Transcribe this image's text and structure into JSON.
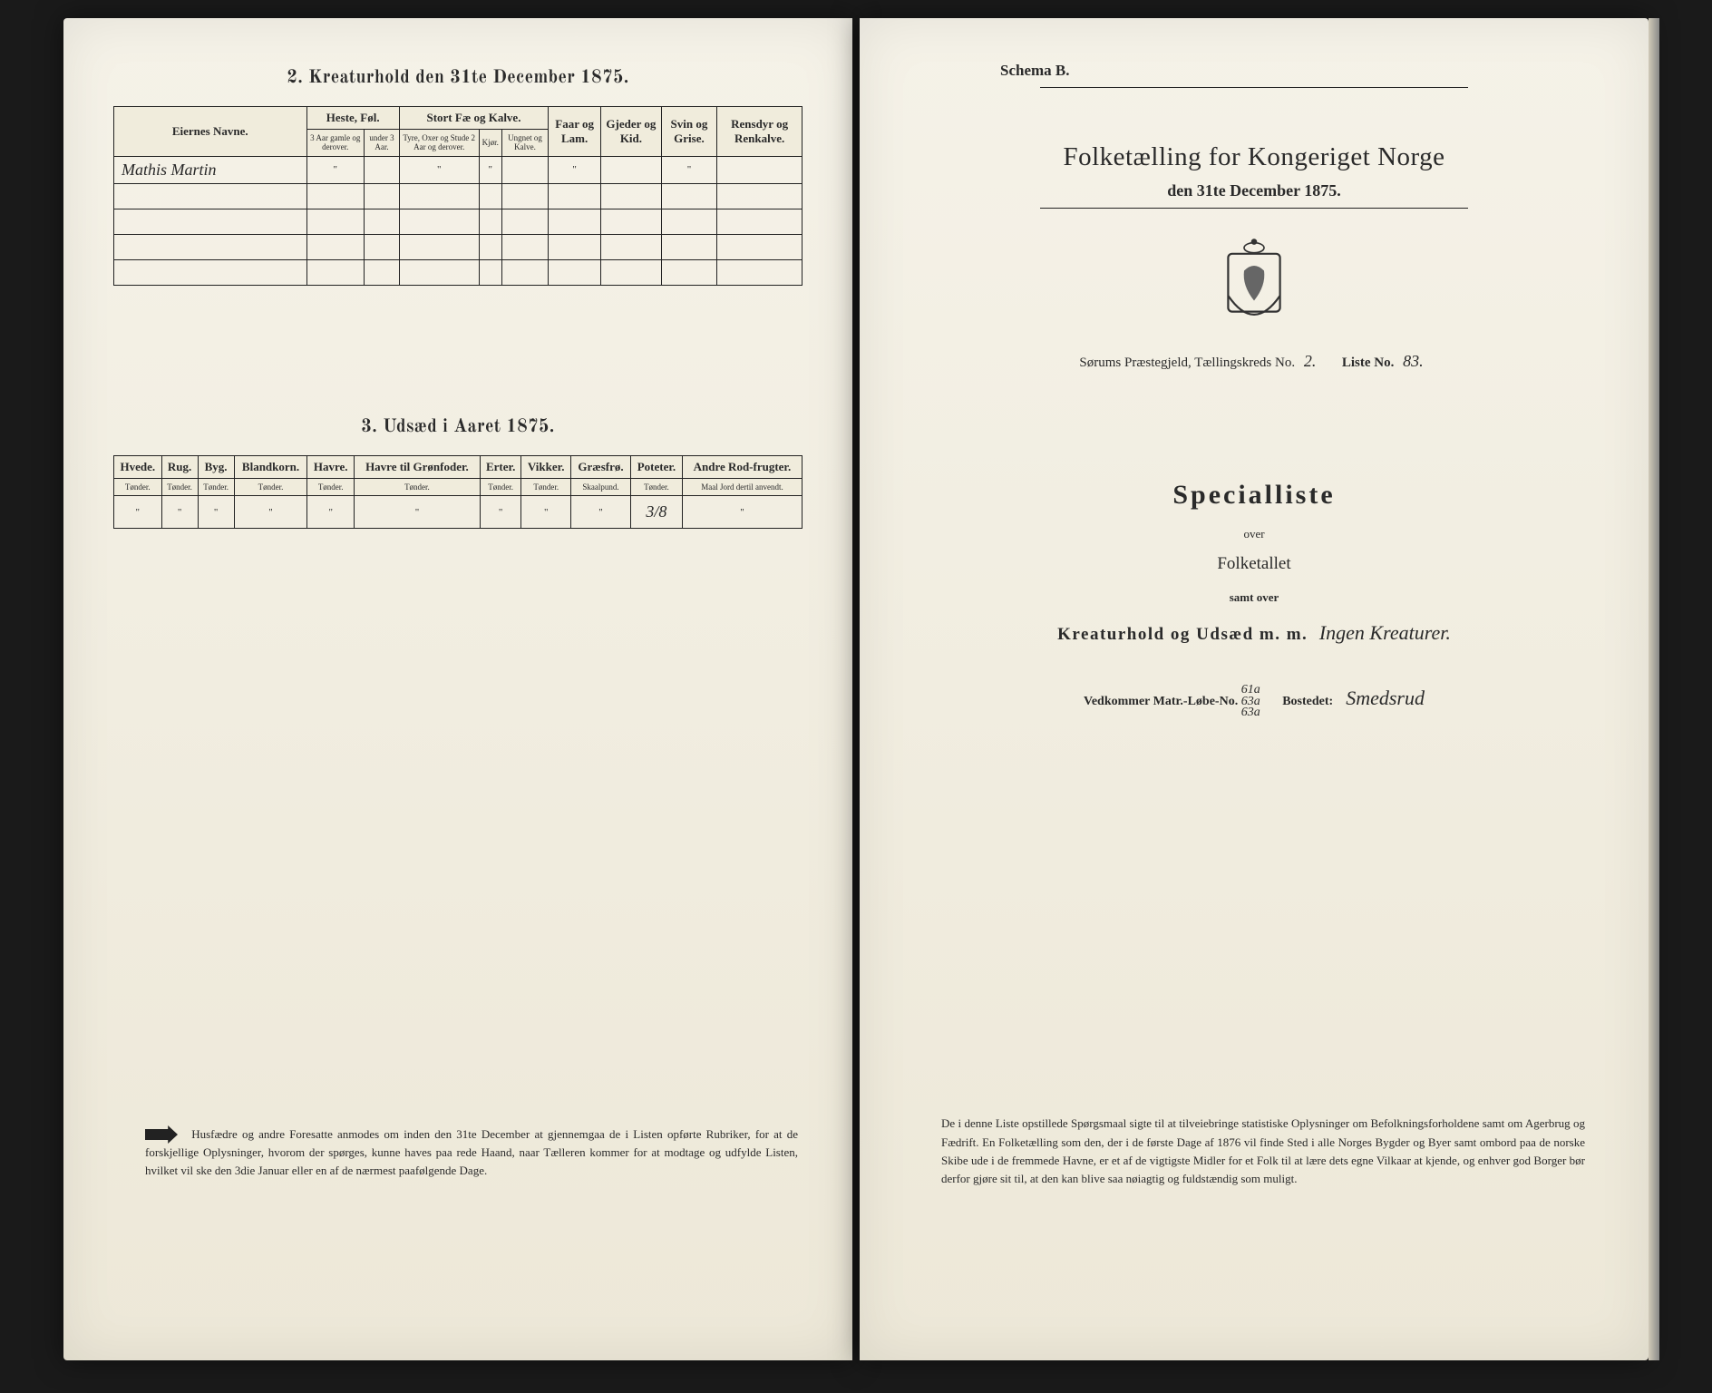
{
  "left": {
    "section2_title": "2.  Kreaturhold den 31te December 1875.",
    "table2": {
      "groups": [
        {
          "label": "Eiernes Navne.",
          "span": 1,
          "rowspan": 2
        },
        {
          "label": "Heste, Føl.",
          "span": 2
        },
        {
          "label": "Stort Fæ og Kalve.",
          "span": 3
        },
        {
          "label": "Faar og Lam.",
          "span": 1,
          "rowspan": 2
        },
        {
          "label": "Gjeder og Kid.",
          "span": 1,
          "rowspan": 2
        },
        {
          "label": "Svin og Grise.",
          "span": 1,
          "rowspan": 2
        },
        {
          "label": "Rensdyr og Renkalve.",
          "span": 1,
          "rowspan": 2
        }
      ],
      "subheaders": [
        "3 Aar gamle og derover.",
        "under 3 Aar.",
        "Tyre, Oxer og Stude 2 Aar og derover.",
        "Kjør.",
        "Ungnet og Kalve."
      ],
      "rows": [
        [
          "Mathis Martin",
          "\"",
          "",
          "\"",
          "\"",
          "",
          "\"",
          "",
          "\"",
          ""
        ],
        [
          "",
          "",
          "",
          "",
          "",
          "",
          "",
          "",
          "",
          ""
        ],
        [
          "",
          "",
          "",
          "",
          "",
          "",
          "",
          "",
          "",
          ""
        ],
        [
          "",
          "",
          "",
          "",
          "",
          "",
          "",
          "",
          "",
          ""
        ],
        [
          "",
          "",
          "",
          "",
          "",
          "",
          "",
          "",
          "",
          ""
        ]
      ]
    },
    "section3_title": "3.  Udsæd i Aaret 1875.",
    "table3": {
      "headers": [
        {
          "top": "Hvede.",
          "sub": "Tønder."
        },
        {
          "top": "Rug.",
          "sub": "Tønder."
        },
        {
          "top": "Byg.",
          "sub": "Tønder."
        },
        {
          "top": "Blandkorn.",
          "sub": "Tønder."
        },
        {
          "top": "Havre.",
          "sub": "Tønder."
        },
        {
          "top": "Havre til Grønfoder.",
          "sub": "Tønder."
        },
        {
          "top": "Erter.",
          "sub": "Tønder."
        },
        {
          "top": "Vikker.",
          "sub": "Tønder."
        },
        {
          "top": "Græsfrø.",
          "sub": "Skaalpund."
        },
        {
          "top": "Poteter.",
          "sub": "Tønder."
        },
        {
          "top": "Andre Rod-frugter.",
          "sub": "Maal Jord dertil anvendt."
        }
      ],
      "rows": [
        [
          "\"",
          "\"",
          "\"",
          "\"",
          "\"",
          "\"",
          "\"",
          "\"",
          "\"",
          "3/8",
          "\""
        ]
      ]
    },
    "footer": "Husfædre og andre Foresatte anmodes om inden den 31te December at gjennemgaa de i Listen opførte Rubriker, for at de forskjellige Oplysninger, hvorom der spørges, kunne haves paa rede Haand, naar Tælleren kommer for at modtage og udfylde Listen, hvilket vil ske den 3die Januar eller en af de nærmest paafølgende Dage."
  },
  "right": {
    "schema": "Schema B.",
    "main_title": "Folketælling for Kongeriget Norge",
    "date_line": "den 31te December 1875.",
    "district_prefix": "Sørums Præstegjeld, Tællingskreds No.",
    "district_no": "2.",
    "liste_label": "Liste No.",
    "liste_no": "83.",
    "specialliste": "Specialliste",
    "over": "over",
    "folketallet": "Folketallet",
    "samt_over": "samt over",
    "kreatur": "Kreaturhold og Udsæd m. m.",
    "kreatur_script": "Ingen Kreaturer.",
    "matr_label": "Vedkommer Matr.-Løbe-No.",
    "matr_no": "61a\n63a\n63a",
    "bosted_label": "Bostedet:",
    "bosted_val": "Smedsrud",
    "footer": "De i denne Liste opstillede Spørgsmaal sigte til at tilveiebringe statistiske Oplysninger om Befolkningsforholdene samt om Agerbrug og Fædrift. En Folketælling som den, der i de første Dage af 1876 vil finde Sted i alle Norges Bygder og Byer samt ombord paa de norske Skibe ude i de fremmede Havne, er et af de vigtigste Midler for et Folk til at lære dets egne Vilkaar at kjende, og enhver god Borger bør derfor gjøre sit til, at den kan blive saa nøiagtig og fuldstændig som muligt."
  },
  "colors": {
    "paper": "#f0ecdc",
    "ink": "#222222",
    "background": "#1a1a1a"
  }
}
